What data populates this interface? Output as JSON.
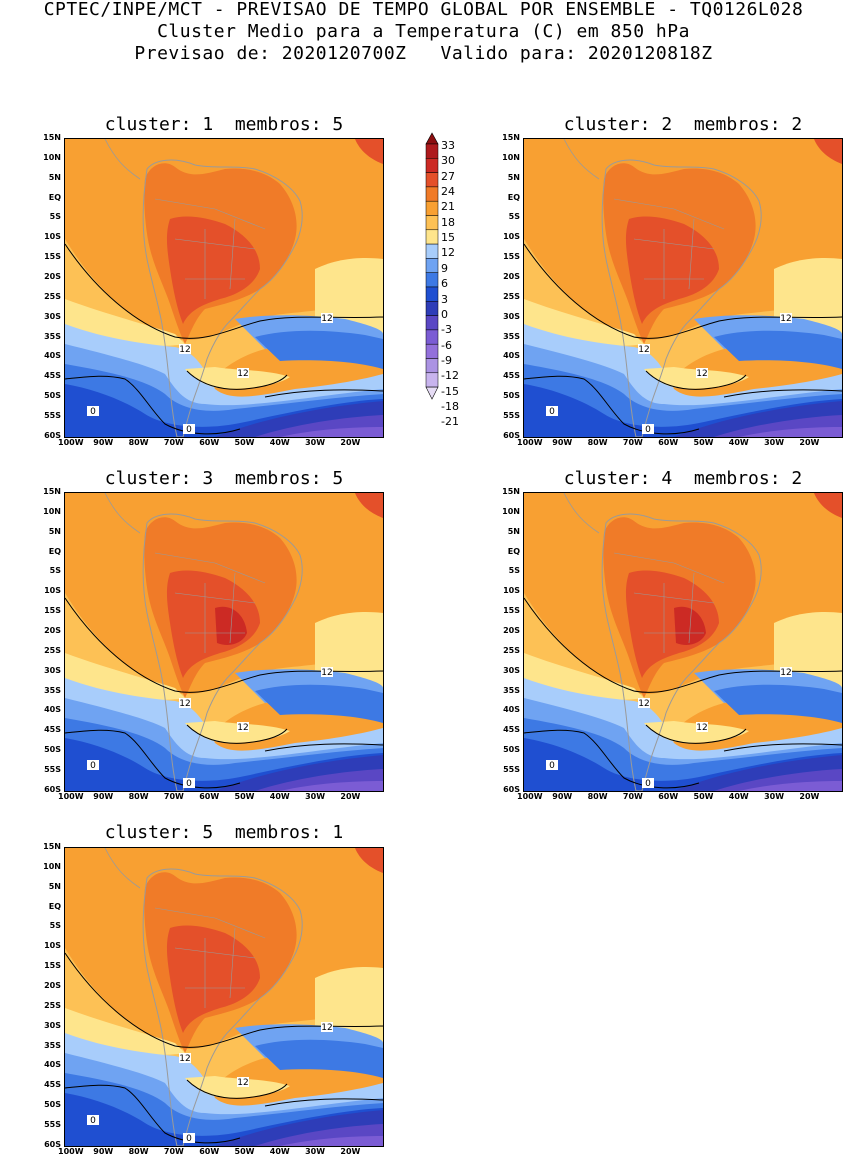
{
  "title": {
    "line1": "CPTEC/INPE/MCT - PREVISAO DE TEMPO GLOBAL POR ENSEMBLE - TQ0126L028",
    "line2": "Cluster Medio para a Temperatura (C) em 850 hPa",
    "line3": "Previsao de: 2020120700Z   Valido para: 2020120818Z"
  },
  "colors": {
    "c_m21": "#e6dcf5",
    "c_m18": "#c8b4ee",
    "c_m15": "#ab93e3",
    "c_m12": "#9370db",
    "c_m9": "#7b5cd4",
    "c_m6": "#5a47c4",
    "c_m3": "#2e3db8",
    "c_0": "#1f4fd1",
    "c_3": "#3d79e4",
    "c_6": "#6fa3f2",
    "c_9": "#a8cdfb",
    "c_12": "#fee58c",
    "c_15": "#fdc155",
    "c_18": "#f8a032",
    "c_21": "#f07b28",
    "c_24": "#e4502a",
    "c_27": "#cc2a24",
    "c_30": "#ae1a1d",
    "c_33": "#8c0e10",
    "land_outline": "#9a9a9a",
    "contour": "#000000"
  },
  "colorbar": {
    "labels": [
      "33",
      "30",
      "27",
      "24",
      "21",
      "18",
      "15",
      "12",
      "9",
      "6",
      "3",
      "0",
      "-3",
      "-6",
      "-9",
      "-12",
      "-15",
      "-18",
      "-21"
    ]
  },
  "panels": [
    {
      "cluster_label": "cluster:",
      "cluster": "1",
      "members_label": "membros:",
      "members": "5"
    },
    {
      "cluster_label": "cluster:",
      "cluster": "2",
      "members_label": "membros:",
      "members": "2"
    },
    {
      "cluster_label": "cluster:",
      "cluster": "3",
      "members_label": "membros:",
      "members": "5"
    },
    {
      "cluster_label": "cluster:",
      "cluster": "4",
      "members_label": "membros:",
      "members": "2"
    },
    {
      "cluster_label": "cluster:",
      "cluster": "5",
      "members_label": "membros:",
      "members": "1"
    }
  ],
  "axes": {
    "lat_labels": [
      "15N",
      "10N",
      "5N",
      "EQ",
      "5S",
      "10S",
      "15S",
      "20S",
      "25S",
      "30S",
      "35S",
      "40S",
      "45S",
      "50S",
      "55S",
      "60S"
    ],
    "lon_labels": [
      "100W",
      "90W",
      "80W",
      "70W",
      "60W",
      "50W",
      "40W",
      "30W",
      "20W"
    ]
  },
  "contour_labels": [
    "12",
    "12",
    "12",
    "0",
    "0"
  ]
}
